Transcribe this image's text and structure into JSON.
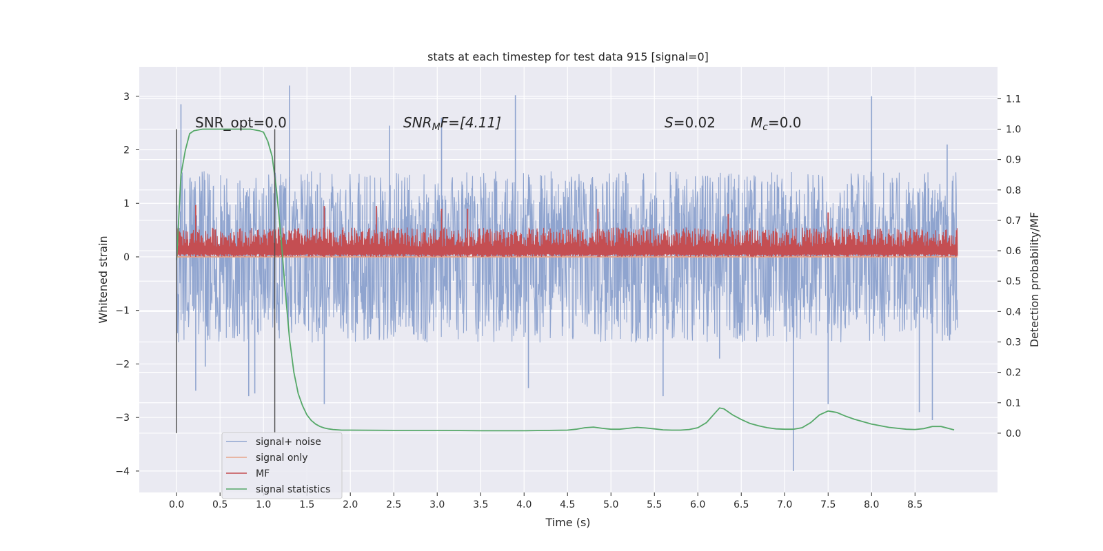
{
  "chart_data": {
    "type": "line",
    "title": "stats at each timestep for test data 915 [signal=0]",
    "xlabel": "Time (s)",
    "ylabel": "Whitened strain",
    "y2label": "Detection probability/MF",
    "xlim": [
      -0.43,
      9.45
    ],
    "ylim": [
      -4.4,
      3.55
    ],
    "y2lim": [
      -0.195,
      1.205
    ],
    "xticks": [
      0.0,
      0.5,
      1.0,
      1.5,
      2.0,
      2.5,
      3.0,
      3.5,
      4.0,
      4.5,
      5.0,
      5.5,
      6.0,
      6.5,
      7.0,
      7.5,
      8.0,
      8.5
    ],
    "xtick_labels": [
      "0.0",
      "0.5",
      "1.0",
      "1.5",
      "2.0",
      "2.5",
      "3.0",
      "3.5",
      "4.0",
      "4.5",
      "5.0",
      "5.5",
      "6.0",
      "6.5",
      "7.0",
      "7.5",
      "8.0",
      "8.5"
    ],
    "yticks": [
      3,
      2,
      1,
      0,
      -1,
      -2,
      -3,
      -4
    ],
    "ytick_labels": [
      "3",
      "2",
      "1",
      "0",
      "−1",
      "−2",
      "−3",
      "−4"
    ],
    "y2ticks": [
      1.1,
      1.0,
      0.9,
      0.8,
      0.7,
      0.6,
      0.5,
      0.4,
      0.3,
      0.2,
      0.1,
      0.0
    ],
    "y2tick_labels": [
      "1.1",
      "1.0",
      "0.9",
      "0.8",
      "0.7",
      "0.6",
      "0.5",
      "0.4",
      "0.3",
      "0.2",
      "0.1",
      "0.0"
    ],
    "grid": true,
    "legend_position": "lower-left",
    "series": [
      {
        "name": "signal+ noise",
        "color": "#8fa4cf",
        "axis": "left",
        "kind": "noise",
        "x_range": [
          0.0,
          8.99
        ],
        "typical_range": [
          -1.6,
          1.6
        ],
        "peaks": [
          [
            0.05,
            2.85
          ],
          [
            0.22,
            -2.5
          ],
          [
            0.33,
            -2.05
          ],
          [
            0.83,
            -2.6
          ],
          [
            0.9,
            -2.55
          ],
          [
            1.3,
            3.2
          ],
          [
            1.7,
            -2.75
          ],
          [
            2.45,
            2.45
          ],
          [
            3.05,
            2.6
          ],
          [
            3.9,
            3.02
          ],
          [
            4.05,
            -2.45
          ],
          [
            5.6,
            -2.6
          ],
          [
            6.25,
            -1.9
          ],
          [
            7.1,
            -4.0
          ],
          [
            7.5,
            -2.75
          ],
          [
            8.0,
            3.0
          ],
          [
            8.55,
            -2.9
          ],
          [
            8.7,
            -3.05
          ],
          [
            8.87,
            2.1
          ]
        ]
      },
      {
        "name": "signal only",
        "color": "#e8a58a",
        "axis": "left",
        "kind": "flat",
        "x_range": [
          0.0,
          8.99
        ],
        "value": 0.0
      },
      {
        "name": "MF",
        "color": "#c44e52",
        "axis": "left",
        "kind": "mf",
        "x_range": [
          0.0,
          8.99
        ],
        "baseline": 0.0,
        "typical_range": [
          0.0,
          0.55
        ],
        "peaks": [
          [
            0.22,
            0.97
          ],
          [
            1.7,
            0.95
          ],
          [
            2.3,
            0.95
          ],
          [
            3.05,
            0.9
          ],
          [
            3.35,
            0.9
          ],
          [
            4.85,
            0.9
          ],
          [
            6.35,
            0.8
          ],
          [
            7.5,
            0.83
          ]
        ]
      },
      {
        "name": "signal statistics",
        "color": "#55a868",
        "axis": "right",
        "kind": "line",
        "x": [
          0.0,
          0.05,
          0.1,
          0.15,
          0.2,
          0.3,
          0.5,
          0.7,
          0.85,
          0.95,
          1.0,
          1.05,
          1.1,
          1.15,
          1.2,
          1.25,
          1.3,
          1.35,
          1.4,
          1.45,
          1.5,
          1.55,
          1.6,
          1.65,
          1.7,
          1.75,
          1.8,
          1.9,
          2.0,
          2.5,
          3.0,
          3.5,
          4.0,
          4.5,
          4.6,
          4.7,
          4.8,
          4.9,
          5.0,
          5.1,
          5.2,
          5.3,
          5.4,
          5.5,
          5.6,
          5.7,
          5.8,
          5.9,
          6.0,
          6.1,
          6.2,
          6.25,
          6.3,
          6.4,
          6.5,
          6.6,
          6.7,
          6.8,
          6.9,
          7.0,
          7.1,
          7.2,
          7.3,
          7.4,
          7.5,
          7.6,
          7.7,
          7.8,
          8.0,
          8.2,
          8.4,
          8.5,
          8.6,
          8.7,
          8.8,
          8.95
        ],
        "values": [
          0.57,
          0.85,
          0.93,
          0.985,
          0.995,
          1.0,
          1.0,
          1.0,
          1.0,
          0.995,
          0.99,
          0.96,
          0.91,
          0.8,
          0.65,
          0.47,
          0.31,
          0.2,
          0.13,
          0.09,
          0.06,
          0.042,
          0.03,
          0.022,
          0.017,
          0.014,
          0.012,
          0.01,
          0.01,
          0.009,
          0.009,
          0.008,
          0.008,
          0.01,
          0.013,
          0.018,
          0.02,
          0.016,
          0.013,
          0.013,
          0.016,
          0.019,
          0.017,
          0.014,
          0.011,
          0.01,
          0.01,
          0.012,
          0.018,
          0.035,
          0.067,
          0.083,
          0.08,
          0.06,
          0.045,
          0.032,
          0.024,
          0.018,
          0.014,
          0.013,
          0.013,
          0.018,
          0.035,
          0.06,
          0.073,
          0.068,
          0.056,
          0.046,
          0.03,
          0.019,
          0.013,
          0.012,
          0.015,
          0.022,
          0.022,
          0.011
        ]
      }
    ],
    "vlines": [
      0.0,
      1.13
    ],
    "annotations": [
      {
        "id": "snr-opt",
        "x": 0.2,
        "text": "SNR_opt=0.0"
      },
      {
        "id": "snr-mf",
        "x": 2.6,
        "text": "SNR_MF=[4.11]"
      },
      {
        "id": "s-value",
        "x": 5.6,
        "text": "S=0.02"
      },
      {
        "id": "mc-value",
        "x": 6.6,
        "text": "M_c=0.0"
      }
    ]
  },
  "legend": {
    "items": [
      {
        "label": "signal+ noise",
        "color": "#8fa4cf"
      },
      {
        "label": "signal only",
        "color": "#e8a58a"
      },
      {
        "label": "MF",
        "color": "#c44e52"
      },
      {
        "label": "signal statistics",
        "color": "#55a868"
      }
    ]
  },
  "annotations_text": {
    "snr_opt": "SNR_opt=0.0",
    "snr_mf_main": "SNR",
    "snr_mf_sub": "M",
    "snr_mf_rest": "F=[4.11]",
    "s_main": "S",
    "s_rest": "=0.02",
    "mc_main": "M",
    "mc_sub": "c",
    "mc_rest": "=0.0"
  },
  "colors": {
    "plot_bg": "#eaeaf2",
    "grid": "#ffffff",
    "vline": "#4c4c4c"
  }
}
